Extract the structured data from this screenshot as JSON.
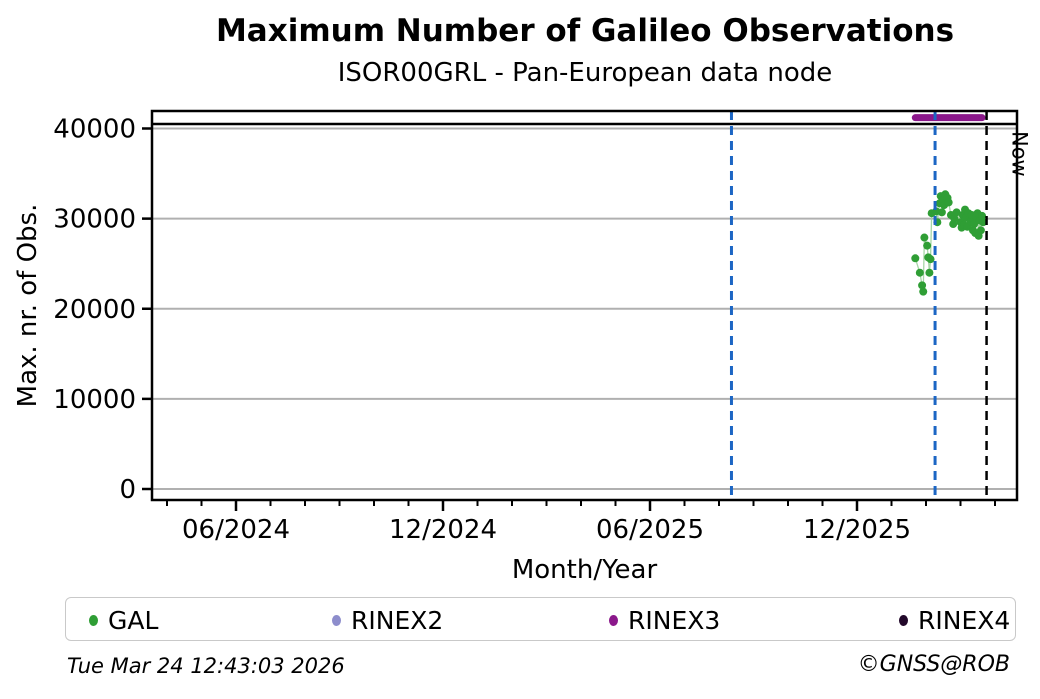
{
  "title": "Maximum Number of Galileo Observations",
  "subtitle": "ISOR00GRL - Pan-European data node",
  "footer": {
    "generated": "Tue Mar 24 12:43:03 2026",
    "credit": "©GNSS@ROB"
  },
  "colors": {
    "gal": "#2f9e35",
    "gal_connector": "#a6d6a6",
    "rinex2": "#8d8dcc",
    "rinex3": "#8b188b",
    "rinex4": "#22082a",
    "event_line": "#1c66c4",
    "now_line": "#000000",
    "grid": "#b0b0b0",
    "frame": "#000000"
  },
  "legend": [
    {
      "label": "GAL",
      "color_key": "gal"
    },
    {
      "label": "RINEX2",
      "color_key": "rinex2"
    },
    {
      "label": "RINEX3",
      "color_key": "rinex3"
    },
    {
      "label": "RINEX4",
      "color_key": "rinex4"
    }
  ],
  "chart_data": {
    "type": "scatter",
    "title": "Maximum Number of Galileo Observations",
    "subtitle": "ISOR00GRL - Pan-European data node",
    "xlabel": "Month/Year",
    "ylabel": "Max. nr. of Obs.",
    "ylim": [
      -1200,
      42000
    ],
    "xlim": [
      "2024-03-20",
      "2026-04-16"
    ],
    "grid": "horizontal-only",
    "yticks": [
      0,
      10000,
      20000,
      30000,
      40000
    ],
    "ytick_labels": [
      "0",
      "10000",
      "20000",
      "30000",
      "40000"
    ],
    "xticks": [
      {
        "label": "06/2024",
        "date": "2024-06-01"
      },
      {
        "label": "12/2024",
        "date": "2024-12-01"
      },
      {
        "label": "06/2025",
        "date": "2025-06-01"
      },
      {
        "label": "12/2025",
        "date": "2025-12-01"
      }
    ],
    "minor_xticks_monthly": {
      "from": "2024-04-01",
      "to": "2026-04-01"
    },
    "series": [
      {
        "name": "GAL",
        "marker": "dot",
        "color_key": "gal",
        "points": [
          [
            "2026-01-22",
            25600
          ],
          [
            "2026-01-26",
            24000
          ],
          [
            "2026-01-28",
            22600
          ],
          [
            "2026-01-29",
            21900
          ],
          [
            "2026-01-30",
            27900
          ],
          [
            "2026-02-02",
            27000
          ],
          [
            "2026-02-03",
            25700
          ],
          [
            "2026-02-04",
            24000
          ],
          [
            "2026-02-05",
            25500
          ],
          [
            "2026-02-06",
            30600
          ],
          [
            "2026-02-10",
            30800
          ],
          [
            "2026-02-11",
            29600
          ],
          [
            "2026-02-13",
            31700
          ],
          [
            "2026-02-14",
            32500
          ],
          [
            "2026-02-15",
            30700
          ],
          [
            "2026-02-16",
            32100
          ],
          [
            "2026-02-17",
            31500
          ],
          [
            "2026-02-18",
            32700
          ],
          [
            "2026-02-20",
            32300
          ],
          [
            "2026-02-21",
            31800
          ],
          [
            "2026-02-23",
            30400
          ],
          [
            "2026-02-25",
            29400
          ],
          [
            "2026-02-26",
            30000
          ],
          [
            "2026-02-28",
            30700
          ],
          [
            "2026-03-01",
            29600
          ],
          [
            "2026-03-02",
            29000
          ],
          [
            "2026-03-03",
            30400
          ],
          [
            "2026-03-04",
            29300
          ],
          [
            "2026-03-05",
            31000
          ],
          [
            "2026-03-06",
            30100
          ],
          [
            "2026-03-07",
            29100
          ],
          [
            "2026-03-08",
            30600
          ],
          [
            "2026-03-10",
            29700
          ],
          [
            "2026-03-11",
            30400
          ],
          [
            "2026-03-12",
            28700
          ],
          [
            "2026-03-13",
            29400
          ],
          [
            "2026-03-14",
            28400
          ],
          [
            "2026-03-15",
            30200
          ],
          [
            "2026-03-16",
            30600
          ],
          [
            "2026-03-17",
            28100
          ],
          [
            "2026-03-18",
            29800
          ],
          [
            "2026-03-19",
            28700
          ],
          [
            "2026-03-20",
            30300
          ],
          [
            "2026-03-21",
            29600
          ]
        ]
      },
      {
        "name": "RINEX2",
        "marker": "dot",
        "color_key": "rinex2",
        "points": []
      },
      {
        "name": "RINEX3",
        "marker": "thick-line",
        "color_key": "rinex3",
        "line": {
          "start": "2026-01-22",
          "end": "2026-03-20",
          "value": 41200
        }
      },
      {
        "name": "RINEX4",
        "marker": "dot",
        "color_key": "rinex4",
        "points": []
      }
    ],
    "annotations": {
      "max_line_value": 40500,
      "event_lines": [
        {
          "date": "2025-08-12",
          "style": "dashed",
          "color_key": "event_line"
        },
        {
          "date": "2026-02-09",
          "style": "dashed",
          "color_key": "event_line"
        }
      ],
      "now": {
        "date": "2026-03-24",
        "label": "Now",
        "style": "dashed",
        "color_key": "now_line"
      }
    }
  }
}
